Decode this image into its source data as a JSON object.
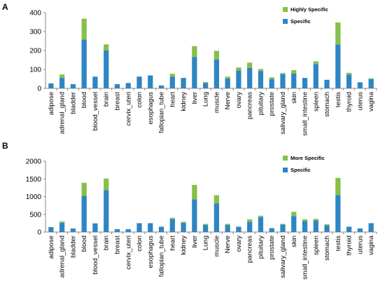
{
  "panels": [
    {
      "label": "A"
    },
    {
      "label": "B"
    }
  ],
  "colors": {
    "base": "#2e85c4",
    "top": "#86c049",
    "axis": "#888888"
  },
  "chart_data": [
    {
      "type": "bar",
      "stacked": true,
      "panel": "A",
      "categories": [
        "adipose",
        "adrenal_gland",
        "bladder",
        "blood",
        "blood_vessel",
        "brain",
        "breast",
        "cervix_uteri",
        "colon",
        "esophagus",
        "fallopian_tube",
        "heart",
        "kidney",
        "liver",
        "Lung",
        "muscle",
        "Nerve",
        "ovary",
        "pancreas",
        "pituitary",
        "prostate",
        "salivary_gland",
        "skin",
        "small_intestine",
        "spleen",
        "stomach",
        "testis",
        "thyroid",
        "uterus",
        "vagina"
      ],
      "series": [
        {
          "name": "Specific",
          "values": [
            26,
            55,
            22,
            258,
            62,
            200,
            22,
            28,
            62,
            68,
            15,
            62,
            55,
            165,
            28,
            152,
            52,
            95,
            108,
            92,
            48,
            75,
            78,
            55,
            128,
            45,
            232,
            72,
            32,
            48
          ]
        },
        {
          "name": "Highly Specific",
          "values": [
            0,
            18,
            0,
            110,
            0,
            32,
            0,
            0,
            0,
            0,
            0,
            15,
            0,
            58,
            5,
            46,
            10,
            15,
            28,
            10,
            10,
            6,
            18,
            0,
            15,
            0,
            116,
            10,
            0,
            5
          ]
        }
      ],
      "ylim": [
        0,
        400
      ],
      "yticks": [
        0,
        100,
        200,
        300,
        400
      ],
      "legend": "top-right",
      "grid": false
    },
    {
      "type": "bar",
      "stacked": true,
      "panel": "B",
      "categories": [
        "adipose",
        "adrenal_gland",
        "bladder",
        "blood",
        "blood_vessel",
        "brain",
        "breast",
        "cervix_uteri",
        "colon",
        "esophagus",
        "fallopian_tube",
        "heart",
        "kidney",
        "liver",
        "Lung",
        "muscle",
        "Nerve",
        "ovary",
        "pancreas",
        "pituitary",
        "prostate",
        "salivary_gland",
        "skin",
        "small_intestine",
        "spleen",
        "stomach",
        "testis",
        "thyroid",
        "uterus",
        "vagina"
      ],
      "series": [
        {
          "name": "Specific",
          "values": [
            140,
            260,
            100,
            1020,
            245,
            1180,
            80,
            80,
            250,
            250,
            150,
            370,
            260,
            920,
            200,
            810,
            200,
            150,
            290,
            420,
            110,
            210,
            450,
            310,
            330,
            190,
            1040,
            150,
            100,
            250
          ]
        },
        {
          "name": "More Specific",
          "values": [
            0,
            40,
            0,
            370,
            0,
            330,
            0,
            0,
            0,
            0,
            0,
            30,
            30,
            410,
            30,
            230,
            30,
            0,
            70,
            40,
            0,
            20,
            120,
            50,
            40,
            30,
            490,
            0,
            0,
            0
          ]
        }
      ],
      "ylim": [
        0,
        2000
      ],
      "yticks": [
        0,
        500,
        1000,
        1500,
        2000
      ],
      "legend": "top-right",
      "grid": false
    }
  ]
}
